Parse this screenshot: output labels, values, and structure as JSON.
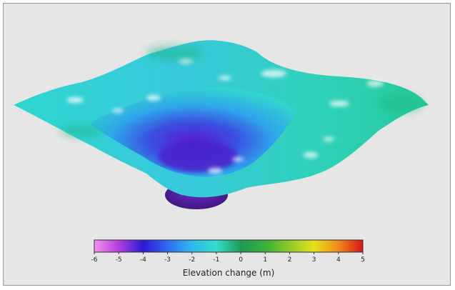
{
  "chart_data": {
    "type": "heatmap",
    "colorbar": {
      "label": "Elevation change (m)",
      "ticks": [
        "-6",
        "-5",
        "-4",
        "-3",
        "-2",
        "-1",
        "0",
        "1",
        "2",
        "3",
        "4",
        "5"
      ],
      "range": [
        -6,
        5
      ],
      "colors": [
        "#f591f0",
        "#b33fdc",
        "#2a1ad6",
        "#2f6bf0",
        "#2fb9ee",
        "#34dccd",
        "#1f9a55",
        "#3aae3a",
        "#8ccc2a",
        "#e8e01a",
        "#f08a1a",
        "#d81418"
      ]
    }
  },
  "colors": {
    "background": "#e6e6e6",
    "border": "#9a9a9a"
  }
}
